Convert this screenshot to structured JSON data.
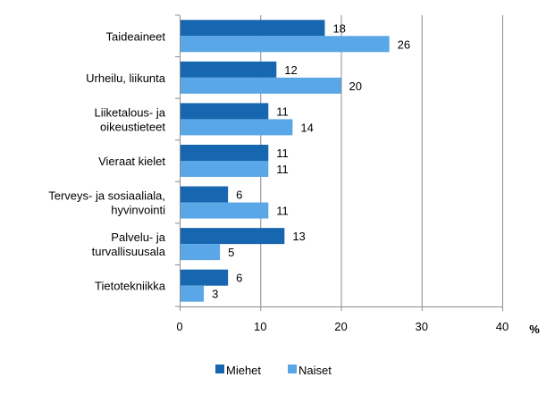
{
  "chart_data": {
    "type": "bar",
    "orientation": "horizontal",
    "categories": [
      "Taideaineet",
      "Urheilu, liikunta",
      "Liiketalous- ja oikeustieteet",
      "Vieraat kielet",
      "Terveys- ja sosiaaliala, hyvinvointi",
      "Palvelu- ja turvallisuusala",
      "Tietotekniikka"
    ],
    "category_lines": [
      [
        "Taideaineet"
      ],
      [
        "Urheilu, liikunta"
      ],
      [
        "Liiketalous- ja",
        "oikeustieteet"
      ],
      [
        "Vieraat kielet"
      ],
      [
        "Terveys- ja sosiaaliala,",
        "hyvinvointi"
      ],
      [
        "Palvelu- ja",
        "turvallisuusala"
      ],
      [
        "Tietotekniikka"
      ]
    ],
    "series": [
      {
        "name": "Miehet",
        "color": "#1766B0",
        "values": [
          18,
          12,
          11,
          11,
          6,
          13,
          6
        ]
      },
      {
        "name": "Naiset",
        "color": "#5AA7E8",
        "values": [
          26,
          20,
          14,
          11,
          11,
          5,
          3
        ]
      }
    ],
    "xlim": [
      0,
      40
    ],
    "xticks": [
      "0",
      "10",
      "20",
      "30",
      "40"
    ],
    "xlabel": "%",
    "grid": true,
    "legend": "bottom",
    "data_labels": true
  }
}
